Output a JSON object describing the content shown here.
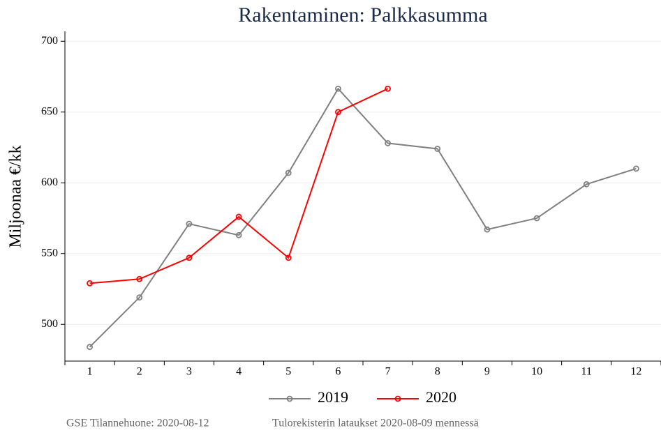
{
  "chart_data": {
    "type": "line",
    "title": "Rakentaminen: Palkkasumma",
    "y_label": "Miljoonaa €/kk",
    "categories": [
      "1",
      "2",
      "3",
      "4",
      "5",
      "6",
      "7",
      "8",
      "9",
      "10",
      "11",
      "12"
    ],
    "series": [
      {
        "name": "2019",
        "color": "#808080",
        "values": [
          484,
          519,
          571,
          563,
          607,
          666.5,
          628,
          624,
          567,
          575,
          599,
          610
        ]
      },
      {
        "name": "2020",
        "color": "#ff0000",
        "values": [
          529,
          532,
          547,
          576,
          547,
          650,
          666.5,
          null,
          null,
          null,
          null,
          null
        ]
      }
    ],
    "ylim": [
      474,
      707
    ],
    "yticks": [
      500,
      550,
      600,
      650,
      700
    ],
    "grid": true,
    "legend": "bottom",
    "footer": [
      "GSE Tilannehuone: 2020-08-12",
      "Tulorekisterin lataukset 2020-08-09 mennessä"
    ]
  }
}
